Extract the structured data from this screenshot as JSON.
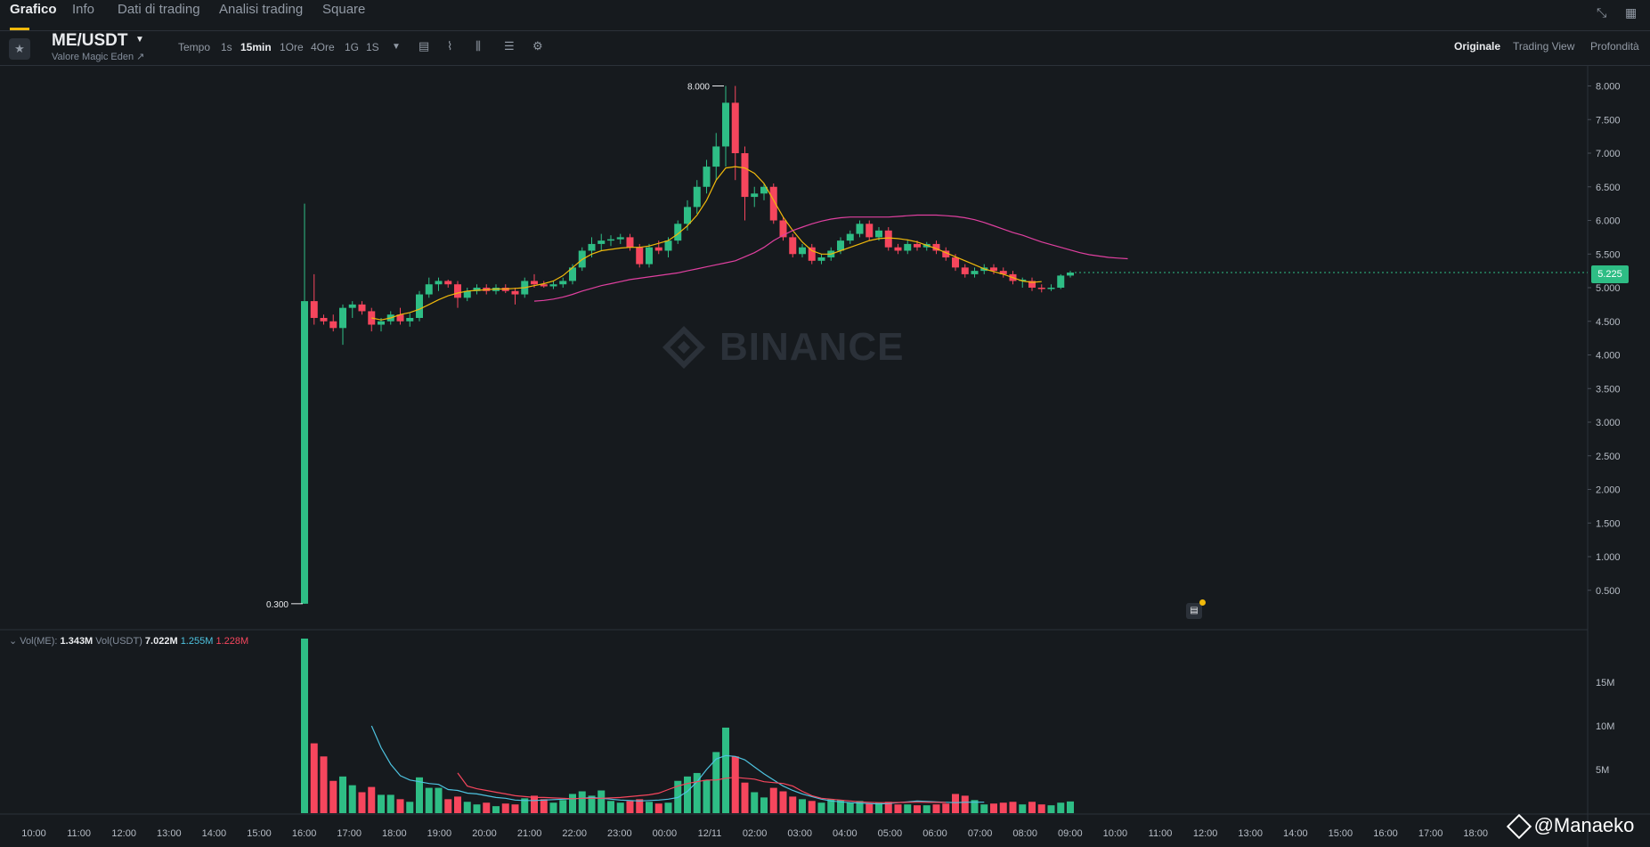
{
  "nav": {
    "tabs": [
      "Grafico",
      "Info",
      "Dati di trading",
      "Analisi trading",
      "Square"
    ],
    "active": "Grafico"
  },
  "toolbar": {
    "pair": "ME/USDT",
    "pair_sub": "Valore Magic Eden ↗",
    "timeframes": [
      "Tempo",
      "1s",
      "15min",
      "1Ore",
      "4Ore",
      "1G",
      "1S"
    ],
    "active_timeframe": "15min",
    "views": [
      "Originale",
      "Trading View",
      "Profondità"
    ],
    "active_view": "Originale"
  },
  "watermark": "BINANCE",
  "price_axis": [
    "8.000",
    "7.500",
    "7.000",
    "6.500",
    "6.000",
    "5.500",
    "5.000",
    "4.500",
    "4.000",
    "3.500",
    "3.000",
    "2.500",
    "2.000",
    "1.500",
    "1.000",
    "0.500"
  ],
  "volume_axis": [
    "15M",
    "10M",
    "5M"
  ],
  "time_axis": [
    "10:00",
    "11:00",
    "12:00",
    "13:00",
    "14:00",
    "15:00",
    "16:00",
    "17:00",
    "18:00",
    "19:00",
    "20:00",
    "21:00",
    "22:00",
    "23:00",
    "00:00",
    "12/11",
    "02:00",
    "03:00",
    "04:00",
    "05:00",
    "06:00",
    "07:00",
    "08:00",
    "09:00",
    "10:00",
    "11:00",
    "12:00",
    "13:00",
    "14:00",
    "15:00",
    "16:00",
    "17:00",
    "18:00"
  ],
  "current_price": "5.225",
  "high_label": "8.000",
  "low_label": "0.300",
  "volume_legend": {
    "vol_me_label": "Vol(ME):",
    "vol_me": "1.343M",
    "vol_usdt_label": "Vol(USDT)",
    "vol_usdt": "7.022M",
    "ma1": "1.255M",
    "ma2": "1.228M"
  },
  "credit": "@Manaeko",
  "colors": {
    "up": "#2ebd85",
    "down": "#f6465d",
    "ma_short": "#f0b90b",
    "ma_long": "#e040a0",
    "vol_ma1": "#4ec3e0",
    "vol_ma2": "#f6465d",
    "background": "#161a1e"
  },
  "chart_data": {
    "type": "candlestick",
    "symbol": "ME/USDT",
    "interval": "15min",
    "ylim": [
      0,
      8.2
    ],
    "volume_ylim": [
      0,
      20
    ],
    "candles": [
      {
        "o": 0.3,
        "h": 6.25,
        "l": 0.3,
        "c": 4.8,
        "v": 20.0
      },
      {
        "o": 4.8,
        "h": 5.2,
        "l": 4.45,
        "c": 4.55,
        "v": 8.0
      },
      {
        "o": 4.55,
        "h": 4.6,
        "l": 4.45,
        "c": 4.5,
        "v": 6.5
      },
      {
        "o": 4.5,
        "h": 4.6,
        "l": 4.35,
        "c": 4.4,
        "v": 3.7
      },
      {
        "o": 4.4,
        "h": 4.75,
        "l": 4.15,
        "c": 4.7,
        "v": 4.2
      },
      {
        "o": 4.7,
        "h": 4.8,
        "l": 4.55,
        "c": 4.75,
        "v": 3.2
      },
      {
        "o": 4.75,
        "h": 4.8,
        "l": 4.6,
        "c": 4.65,
        "v": 2.4
      },
      {
        "o": 4.65,
        "h": 4.7,
        "l": 4.35,
        "c": 4.45,
        "v": 3.0
      },
      {
        "o": 4.45,
        "h": 4.55,
        "l": 4.35,
        "c": 4.5,
        "v": 2.1
      },
      {
        "o": 4.5,
        "h": 4.65,
        "l": 4.45,
        "c": 4.6,
        "v": 2.1
      },
      {
        "o": 4.6,
        "h": 4.7,
        "l": 4.45,
        "c": 4.5,
        "v": 1.6
      },
      {
        "o": 4.5,
        "h": 4.62,
        "l": 4.42,
        "c": 4.55,
        "v": 1.3
      },
      {
        "o": 4.55,
        "h": 4.95,
        "l": 4.5,
        "c": 4.9,
        "v": 4.1
      },
      {
        "o": 4.9,
        "h": 5.15,
        "l": 4.85,
        "c": 5.05,
        "v": 2.9
      },
      {
        "o": 5.05,
        "h": 5.15,
        "l": 4.95,
        "c": 5.1,
        "v": 2.9
      },
      {
        "o": 5.1,
        "h": 5.12,
        "l": 5.0,
        "c": 5.05,
        "v": 1.6
      },
      {
        "o": 5.05,
        "h": 5.1,
        "l": 4.7,
        "c": 4.85,
        "v": 1.9
      },
      {
        "o": 4.85,
        "h": 5.0,
        "l": 4.8,
        "c": 4.95,
        "v": 1.3
      },
      {
        "o": 4.95,
        "h": 5.05,
        "l": 4.9,
        "c": 5.0,
        "v": 1.0
      },
      {
        "o": 5.0,
        "h": 5.05,
        "l": 4.9,
        "c": 4.95,
        "v": 1.2
      },
      {
        "o": 4.95,
        "h": 5.05,
        "l": 4.9,
        "c": 5.0,
        "v": 0.8
      },
      {
        "o": 5.0,
        "h": 5.05,
        "l": 4.92,
        "c": 4.95,
        "v": 1.1
      },
      {
        "o": 4.95,
        "h": 5.0,
        "l": 4.75,
        "c": 4.9,
        "v": 1.0
      },
      {
        "o": 4.9,
        "h": 5.15,
        "l": 4.85,
        "c": 5.1,
        "v": 1.7
      },
      {
        "o": 5.1,
        "h": 5.2,
        "l": 5.0,
        "c": 5.05,
        "v": 2.0
      },
      {
        "o": 5.05,
        "h": 5.1,
        "l": 5.0,
        "c": 5.02,
        "v": 1.6
      },
      {
        "o": 5.02,
        "h": 5.1,
        "l": 4.98,
        "c": 5.05,
        "v": 1.2
      },
      {
        "o": 5.05,
        "h": 5.15,
        "l": 5.0,
        "c": 5.1,
        "v": 1.5
      },
      {
        "o": 5.1,
        "h": 5.35,
        "l": 5.05,
        "c": 5.3,
        "v": 2.2
      },
      {
        "o": 5.3,
        "h": 5.6,
        "l": 5.25,
        "c": 5.55,
        "v": 2.5
      },
      {
        "o": 5.55,
        "h": 5.75,
        "l": 5.45,
        "c": 5.65,
        "v": 2.0
      },
      {
        "o": 5.65,
        "h": 5.8,
        "l": 5.55,
        "c": 5.7,
        "v": 2.6
      },
      {
        "o": 5.7,
        "h": 5.78,
        "l": 5.62,
        "c": 5.72,
        "v": 1.4
      },
      {
        "o": 5.72,
        "h": 5.8,
        "l": 5.65,
        "c": 5.75,
        "v": 1.2
      },
      {
        "o": 5.75,
        "h": 5.8,
        "l": 5.55,
        "c": 5.6,
        "v": 1.4
      },
      {
        "o": 5.6,
        "h": 5.65,
        "l": 5.3,
        "c": 5.35,
        "v": 1.6
      },
      {
        "o": 5.35,
        "h": 5.65,
        "l": 5.3,
        "c": 5.6,
        "v": 1.3
      },
      {
        "o": 5.6,
        "h": 5.7,
        "l": 5.5,
        "c": 5.55,
        "v": 1.1
      },
      {
        "o": 5.55,
        "h": 5.75,
        "l": 5.45,
        "c": 5.7,
        "v": 1.2
      },
      {
        "o": 5.7,
        "h": 6.0,
        "l": 5.65,
        "c": 5.95,
        "v": 3.7
      },
      {
        "o": 5.95,
        "h": 6.3,
        "l": 5.85,
        "c": 6.2,
        "v": 4.2
      },
      {
        "o": 6.2,
        "h": 6.6,
        "l": 6.1,
        "c": 6.5,
        "v": 4.6
      },
      {
        "o": 6.5,
        "h": 6.9,
        "l": 6.4,
        "c": 6.8,
        "v": 3.8
      },
      {
        "o": 6.8,
        "h": 7.3,
        "l": 6.6,
        "c": 7.1,
        "v": 7.0
      },
      {
        "o": 7.1,
        "h": 8.0,
        "l": 6.8,
        "c": 7.75,
        "v": 9.8
      },
      {
        "o": 7.75,
        "h": 8.0,
        "l": 6.6,
        "c": 7.0,
        "v": 6.5
      },
      {
        "o": 7.0,
        "h": 7.1,
        "l": 6.0,
        "c": 6.35,
        "v": 3.5
      },
      {
        "o": 6.35,
        "h": 6.5,
        "l": 6.2,
        "c": 6.4,
        "v": 2.4
      },
      {
        "o": 6.4,
        "h": 6.55,
        "l": 6.3,
        "c": 6.5,
        "v": 1.8
      },
      {
        "o": 6.5,
        "h": 6.55,
        "l": 5.95,
        "c": 6.0,
        "v": 2.9
      },
      {
        "o": 6.0,
        "h": 6.05,
        "l": 5.7,
        "c": 5.75,
        "v": 2.5
      },
      {
        "o": 5.75,
        "h": 5.8,
        "l": 5.45,
        "c": 5.5,
        "v": 1.9
      },
      {
        "o": 5.5,
        "h": 5.65,
        "l": 5.45,
        "c": 5.6,
        "v": 1.6
      },
      {
        "o": 5.6,
        "h": 5.65,
        "l": 5.35,
        "c": 5.4,
        "v": 1.4
      },
      {
        "o": 5.4,
        "h": 5.5,
        "l": 5.35,
        "c": 5.45,
        "v": 1.2
      },
      {
        "o": 5.45,
        "h": 5.6,
        "l": 5.4,
        "c": 5.55,
        "v": 1.6
      },
      {
        "o": 5.55,
        "h": 5.75,
        "l": 5.5,
        "c": 5.7,
        "v": 1.5
      },
      {
        "o": 5.7,
        "h": 5.85,
        "l": 5.65,
        "c": 5.8,
        "v": 1.2
      },
      {
        "o": 5.8,
        "h": 6.0,
        "l": 5.75,
        "c": 5.95,
        "v": 1.4
      },
      {
        "o": 5.95,
        "h": 6.0,
        "l": 5.7,
        "c": 5.75,
        "v": 1.1
      },
      {
        "o": 5.75,
        "h": 5.9,
        "l": 5.7,
        "c": 5.85,
        "v": 1.2
      },
      {
        "o": 5.85,
        "h": 5.9,
        "l": 5.55,
        "c": 5.6,
        "v": 1.3
      },
      {
        "o": 5.6,
        "h": 5.65,
        "l": 5.5,
        "c": 5.55,
        "v": 1.0
      },
      {
        "o": 5.55,
        "h": 5.7,
        "l": 5.5,
        "c": 5.65,
        "v": 1.0
      },
      {
        "o": 5.65,
        "h": 5.7,
        "l": 5.55,
        "c": 5.6,
        "v": 0.9
      },
      {
        "o": 5.6,
        "h": 5.68,
        "l": 5.55,
        "c": 5.65,
        "v": 0.9
      },
      {
        "o": 5.65,
        "h": 5.7,
        "l": 5.5,
        "c": 5.55,
        "v": 1.0
      },
      {
        "o": 5.55,
        "h": 5.6,
        "l": 5.4,
        "c": 5.45,
        "v": 1.1
      },
      {
        "o": 5.45,
        "h": 5.5,
        "l": 5.25,
        "c": 5.3,
        "v": 2.2
      },
      {
        "o": 5.3,
        "h": 5.35,
        "l": 5.15,
        "c": 5.2,
        "v": 2.0
      },
      {
        "o": 5.2,
        "h": 5.3,
        "l": 5.15,
        "c": 5.25,
        "v": 1.5
      },
      {
        "o": 5.25,
        "h": 5.35,
        "l": 5.2,
        "c": 5.3,
        "v": 1.0
      },
      {
        "o": 5.3,
        "h": 5.35,
        "l": 5.2,
        "c": 5.25,
        "v": 1.1
      },
      {
        "o": 5.25,
        "h": 5.3,
        "l": 5.15,
        "c": 5.2,
        "v": 1.2
      },
      {
        "o": 5.2,
        "h": 5.25,
        "l": 5.05,
        "c": 5.1,
        "v": 1.3
      },
      {
        "o": 5.1,
        "h": 5.15,
        "l": 5.0,
        "c": 5.12,
        "v": 1.0
      },
      {
        "o": 5.1,
        "h": 5.15,
        "l": 4.95,
        "c": 5.0,
        "v": 1.3
      },
      {
        "o": 5.0,
        "h": 5.05,
        "l": 4.93,
        "c": 4.98,
        "v": 1.0
      },
      {
        "o": 4.98,
        "h": 5.05,
        "l": 4.95,
        "c": 5.0,
        "v": 0.9
      },
      {
        "o": 5.0,
        "h": 5.2,
        "l": 4.98,
        "c": 5.18,
        "v": 1.2
      },
      {
        "o": 5.18,
        "h": 5.25,
        "l": 5.15,
        "c": 5.225,
        "v": 1.34
      }
    ],
    "ma_short": [
      4.55,
      4.52,
      4.55,
      4.6,
      4.63,
      4.68,
      4.75,
      4.82,
      4.88,
      4.92,
      4.95,
      4.96,
      4.97,
      4.98,
      4.98,
      4.99,
      5.0,
      5.03,
      5.06,
      5.1,
      5.18,
      5.3,
      5.42,
      5.5,
      5.55,
      5.57,
      5.59,
      5.6,
      5.6,
      5.62,
      5.66,
      5.7,
      5.8,
      5.92,
      6.08,
      6.3,
      6.6,
      6.78,
      6.8,
      6.78,
      6.7,
      6.55,
      6.3,
      6.05,
      5.85,
      5.68,
      5.55,
      5.5,
      5.5,
      5.55,
      5.6,
      5.65,
      5.7,
      5.73,
      5.74,
      5.73,
      5.71,
      5.68,
      5.63,
      5.58,
      5.52,
      5.46,
      5.4,
      5.34,
      5.28,
      5.24,
      5.2,
      5.15,
      5.1,
      5.08,
      5.09
    ],
    "ma_long": [
      4.8,
      4.81,
      4.83,
      4.86,
      4.9,
      4.95,
      4.99,
      5.03,
      5.06,
      5.09,
      5.12,
      5.14,
      5.16,
      5.18,
      5.2,
      5.22,
      5.25,
      5.28,
      5.31,
      5.34,
      5.37,
      5.4,
      5.46,
      5.52,
      5.6,
      5.7,
      5.78,
      5.85,
      5.9,
      5.95,
      5.99,
      6.02,
      6.04,
      6.05,
      6.05,
      6.05,
      6.05,
      6.05,
      6.06,
      6.07,
      6.08,
      6.08,
      6.08,
      6.07,
      6.06,
      6.04,
      6.01,
      5.97,
      5.92,
      5.87,
      5.82,
      5.78,
      5.73,
      5.68,
      5.64,
      5.6,
      5.56,
      5.52,
      5.49,
      5.47,
      5.45,
      5.44,
      5.43
    ],
    "vol_ma1": [
      10.0,
      7.5,
      5.6,
      4.3,
      3.8,
      3.6,
      3.4,
      3.3,
      2.7,
      2.6,
      2.3,
      2.2,
      2.0,
      1.8,
      1.7,
      1.5,
      1.45,
      1.45,
      1.5,
      1.55,
      1.6,
      1.65,
      1.7,
      1.8,
      1.7,
      1.6,
      1.5,
      1.45,
      1.4,
      1.45,
      1.5,
      1.6,
      1.8,
      2.5,
      3.6,
      5.0,
      6.2,
      6.6,
      6.5,
      6.1,
      5.3,
      4.5,
      3.8,
      3.1,
      2.6,
      2.2,
      1.9,
      1.6,
      1.4,
      1.3,
      1.2,
      1.15,
      1.1,
      1.05,
      1.1,
      1.2,
      1.3,
      1.4,
      1.35,
      1.3,
      1.25,
      1.2,
      1.25,
      1.26,
      1.255
    ],
    "vol_ma2": [
      4.6,
      3.1,
      2.8,
      2.6,
      2.4,
      2.2,
      2.0,
      1.9,
      1.8,
      1.8,
      1.75,
      1.7,
      1.65,
      1.7,
      1.7,
      1.7,
      1.75,
      1.8,
      1.9,
      2.0,
      2.1,
      2.3,
      2.7,
      3.1,
      3.4,
      3.6,
      3.8,
      3.8,
      4.0,
      4.1,
      4.0,
      3.9,
      3.6,
      3.5,
      3.4,
      3.1,
      2.5,
      2.0,
      1.7,
      1.6,
      1.5,
      1.4,
      1.3,
      1.25,
      1.2,
      1.2,
      1.22,
      1.25,
      1.26,
      1.25,
      1.23,
      1.228
    ]
  }
}
